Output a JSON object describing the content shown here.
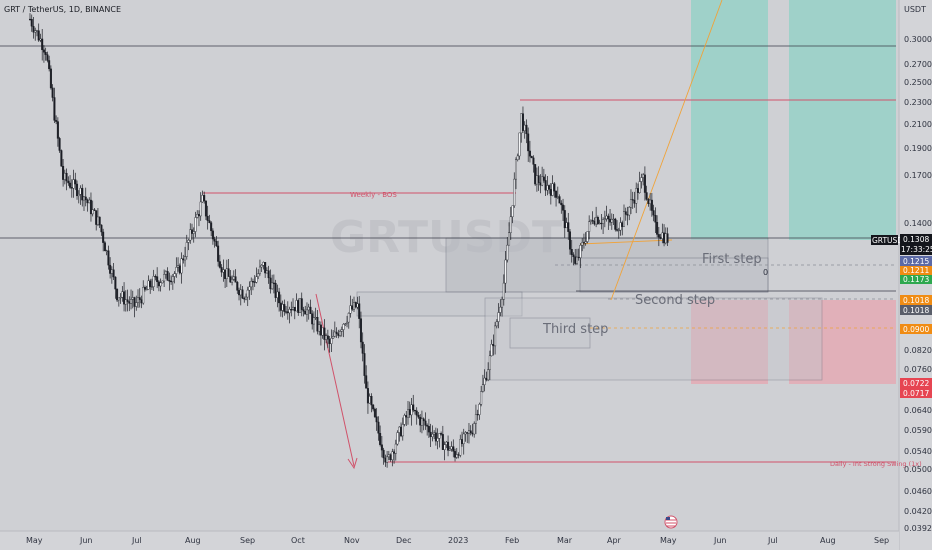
{
  "header": {
    "symbol_text": "GRT / TetherUS, 1D, BINANCE"
  },
  "watermark": "GRTUSDT",
  "colors": {
    "background": "#cfd0d4",
    "candle": "#1b1d24",
    "red_line": "#d0526a",
    "orange_line": "#f0a33a",
    "green_zone": "#8fd1c6",
    "red_zone": "#e8a3ae",
    "price_tag_dark": "#14161c",
    "tag_blue": "#5c6aa6",
    "tag_orange": "#f08c14",
    "tag_green": "#2ea84f",
    "tag_red": "#e64552"
  },
  "chart_data": {
    "type": "candlestick",
    "series": [
      {
        "name": "GRTUSDT"
      }
    ],
    "y_scale": "log",
    "y_axis_unit": "USDT",
    "y_ticks": [
      "0.3000",
      "0.2700",
      "0.2500",
      "0.2300",
      "0.2100",
      "0.1900",
      "0.1700",
      "0.1400",
      "0.0820",
      "0.0760",
      "0.0640",
      "0.0590",
      "0.0540",
      "0.0500",
      "0.0460",
      "0.0420",
      "0.0392"
    ],
    "x_ticks": [
      "May",
      "Jun",
      "Jul",
      "Aug",
      "Sep",
      "Oct",
      "Nov",
      "Dec",
      "2023",
      "Feb",
      "Mar",
      "Apr",
      "May",
      "Jun",
      "Jul",
      "Aug",
      "Sep"
    ],
    "price_path": [
      [
        "2022-05-01",
        0.33
      ],
      [
        "2022-05-10",
        0.29
      ],
      [
        "2022-05-20",
        0.17
      ],
      [
        "2022-05-31",
        0.16
      ],
      [
        "2022-06-10",
        0.14
      ],
      [
        "2022-06-20",
        0.105
      ],
      [
        "2022-06-30",
        0.1
      ],
      [
        "2022-07-10",
        0.11
      ],
      [
        "2022-07-25",
        0.115
      ],
      [
        "2022-08-08",
        0.155
      ],
      [
        "2022-08-20",
        0.115
      ],
      [
        "2022-09-01",
        0.105
      ],
      [
        "2022-09-12",
        0.118
      ],
      [
        "2022-09-22",
        0.1
      ],
      [
        "2022-10-05",
        0.1
      ],
      [
        "2022-10-20",
        0.085
      ],
      [
        "2022-11-01",
        0.098
      ],
      [
        "2022-11-05",
        0.1
      ],
      [
        "2022-11-10",
        0.07
      ],
      [
        "2022-11-22",
        0.052
      ],
      [
        "2022-12-05",
        0.065
      ],
      [
        "2022-12-20",
        0.058
      ],
      [
        "2022-12-31",
        0.054
      ],
      [
        "2023-01-10",
        0.06
      ],
      [
        "2023-01-20",
        0.08
      ],
      [
        "2023-01-28",
        0.11
      ],
      [
        "2023-02-07",
        0.22
      ],
      [
        "2023-02-15",
        0.17
      ],
      [
        "2023-02-28",
        0.16
      ],
      [
        "2023-03-10",
        0.118
      ],
      [
        "2023-03-20",
        0.145
      ],
      [
        "2023-04-05",
        0.14
      ],
      [
        "2023-04-18",
        0.17
      ],
      [
        "2023-04-25",
        0.138
      ],
      [
        "2023-05-02",
        0.132
      ]
    ],
    "candles_note": "daily OHLC candles; values estimated from the price path",
    "levels": [
      {
        "label": "Weekly - BOS",
        "price": 0.152
      },
      {
        "label": "Daily - Int Strong Swing (1x)",
        "price": 0.0515
      }
    ],
    "zone_labels": [
      "First step",
      "Second step",
      "Third step"
    ],
    "position_marker": "0",
    "price_tags": [
      {
        "ticker": "GRTUSDT",
        "value": "0.1308",
        "countdown": "17:33:25"
      },
      {
        "value": "0.1215"
      },
      {
        "value": "0.1211"
      },
      {
        "value": "0.1173"
      },
      {
        "value": "0.1018"
      },
      {
        "value": "0.1018"
      },
      {
        "value": "0.0900"
      },
      {
        "value": "0.0722"
      },
      {
        "value": "0.0717"
      }
    ]
  }
}
